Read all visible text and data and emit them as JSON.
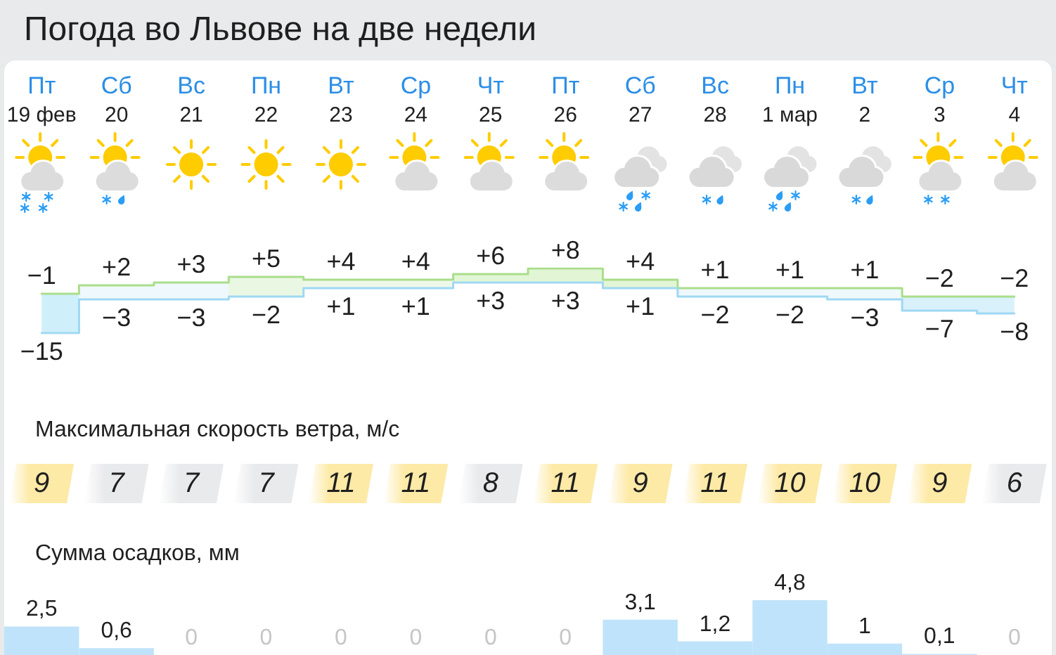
{
  "chart_data": [
    {
      "type": "step",
      "title": "Погода во Львове на две недели",
      "categories": [
        "Пт\n19 фев",
        "Сб\n20",
        "Вс\n21",
        "Пн\n22",
        "Вт\n23",
        "Ср\n24",
        "Чт\n25",
        "Пт\n26",
        "Сб\n27",
        "Вс\n28",
        "Пн\n1 мар",
        "Вт\n2",
        "Ср\n3",
        "Чт\n4"
      ],
      "series": [
        {
          "color": "#a9de8a",
          "values": [
            -1,
            2,
            3,
            5,
            4,
            4,
            6,
            8,
            4,
            1,
            1,
            1,
            -2,
            -2
          ],
          "value_labels": [
            "−1",
            "+2",
            "+3",
            "+5",
            "+4",
            "+4",
            "+6",
            "+8",
            "+4",
            "+1",
            "+1",
            "+1",
            "−2",
            "−2"
          ],
          "lower": [
            -15,
            -3,
            -3,
            -2,
            1,
            1,
            3,
            3,
            1,
            -2,
            -2,
            -3,
            -7,
            -8
          ],
          "upper": [
            -1,
            2,
            3,
            5,
            4,
            4,
            6,
            8,
            4,
            1,
            1,
            1,
            -2,
            -2
          ]
        },
        {
          "color": "#9fd8f3",
          "values": [
            -15,
            -3,
            -3,
            -2,
            1,
            1,
            3,
            3,
            1,
            -2,
            -2,
            -3,
            -7,
            -8
          ],
          "value_labels": [
            "−15",
            "−3",
            "−3",
            "−2",
            "+1",
            "+1",
            "+3",
            "+3",
            "+1",
            "−2",
            "−2",
            "−3",
            "−7",
            "−8"
          ]
        }
      ],
      "colors": [
        "#cfeffb",
        "#eef8fd",
        "#eef8fd",
        "#eaf7e3",
        "#eef8e8",
        "#eef8e8",
        "#e2f5d5",
        "#e2f5d5",
        "#e2f5d5",
        "#eef8fd",
        "#eef8fd",
        "#eef8fd",
        "#d8f1fb",
        "#d8f1fb"
      ],
      "tick_labels": "x"
    },
    {
      "type": "other",
      "title": "Максимальная скорость ветра, м/с",
      "values": [
        9,
        7,
        7,
        7,
        11,
        11,
        8,
        11,
        9,
        11,
        10,
        10,
        9,
        6
      ],
      "colors": [
        "#fdeaa7",
        "#e9eaec",
        "#e9eaec",
        "#e9eaec",
        "#fdeaa7",
        "#fdeaa7",
        "#e9eaec",
        "#fdeaa7",
        "#fdeaa7",
        "#fdeaa7",
        "#fdeaa7",
        "#fdeaa7",
        "#fdeaa7",
        "#e9eaec"
      ],
      "data_labels": true
    },
    {
      "type": "bar",
      "title": "Сумма осадков, мм",
      "categories": [
        null,
        null,
        null,
        null,
        null,
        null,
        null,
        null,
        null,
        null,
        null,
        null,
        null,
        null
      ],
      "values": [
        2.5,
        0.6,
        0,
        0,
        0,
        0,
        0,
        0,
        3.1,
        1.2,
        4.8,
        1,
        0.1,
        0
      ],
      "value_labels": [
        "2,5",
        "0,6",
        "0",
        "0",
        "0",
        "0",
        "0",
        "0",
        "3,1",
        "1,2",
        "4,8",
        "1",
        "0,1",
        "0"
      ],
      "color": "#bfe3fa",
      "tick_labels": false
    }
  ]
}
